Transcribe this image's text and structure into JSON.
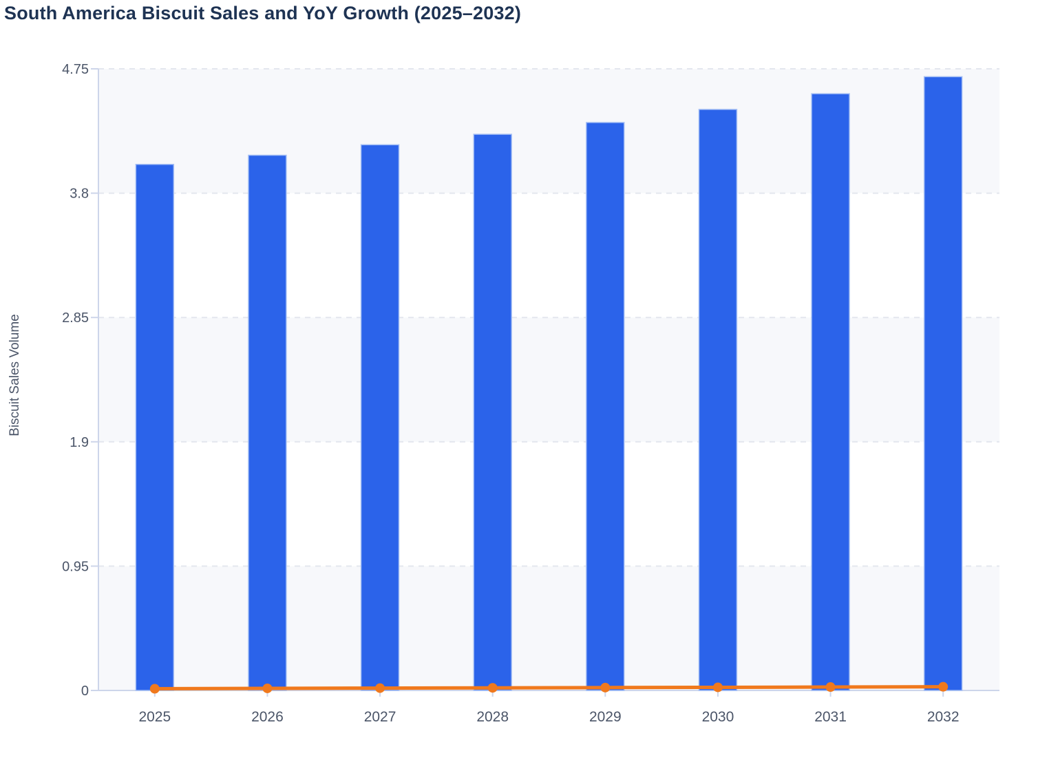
{
  "title": "South America Biscuit Sales and YoY Growth (2025–2032)",
  "chart_data": {
    "type": "bar",
    "title": "South America Biscuit Sales and YoY Growth (2025–2032)",
    "categories": [
      "2025",
      "2026",
      "2027",
      "2028",
      "2029",
      "2030",
      "2031",
      "2032"
    ],
    "series": [
      {
        "name": "Biscuit Sales Volume",
        "type": "bar",
        "color": "#2b63ea",
        "values": [
          4.02,
          4.09,
          4.17,
          4.25,
          4.34,
          4.44,
          4.56,
          4.69
        ]
      },
      {
        "name": "YoY Growth",
        "type": "line",
        "color": "#f0791d",
        "values": [
          0.013,
          0.016,
          0.018,
          0.02,
          0.022,
          0.024,
          0.026,
          0.028
        ]
      }
    ],
    "xlabel": "",
    "ylabel": "Biscuit Sales Volume",
    "ylim": [
      0,
      4.75
    ],
    "yticks": [
      0,
      0.95,
      1.9,
      2.85,
      3.8,
      4.75
    ],
    "ytick_labels": [
      "0",
      "0.95",
      "1.9",
      "2.85",
      "3.8",
      "4.75"
    ],
    "grid": "horizontal-dashed",
    "legend": "none",
    "plot_bands": "alternating-horizontal"
  },
  "styles": {
    "bar_color": "#2b63ea",
    "bar_border_color": "#a5bff4",
    "line_color": "#f0791d",
    "band_color": "#f7f8fb",
    "grid_color": "#e3e6ee",
    "axis_color": "#cdd5ea",
    "title_color": "#1e3353",
    "tick_label_color": "#4b5568"
  }
}
